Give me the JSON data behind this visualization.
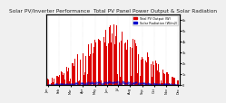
{
  "title": "Solar PV/Inverter Performance  Total PV Panel Power Output & Solar Radiation",
  "title_fontsize": 4.2,
  "background_color": "#f0f0f0",
  "plot_bg_color": "#ffffff",
  "num_days": 120,
  "ylabel_right": [
    "0",
    "1k",
    "2k",
    "3k",
    "4k",
    "5k",
    "6k"
  ],
  "ylim": [
    0,
    6500
  ],
  "bar_color": "#dd0000",
  "dot_color": "#0000cc",
  "legend_pv": "Total PV Output (W)",
  "legend_solar": "Solar Radiation (W/m2)",
  "grid_color": "#cccccc",
  "xticklabel_fontsize": 2.5,
  "yticklabel_fontsize": 2.5
}
